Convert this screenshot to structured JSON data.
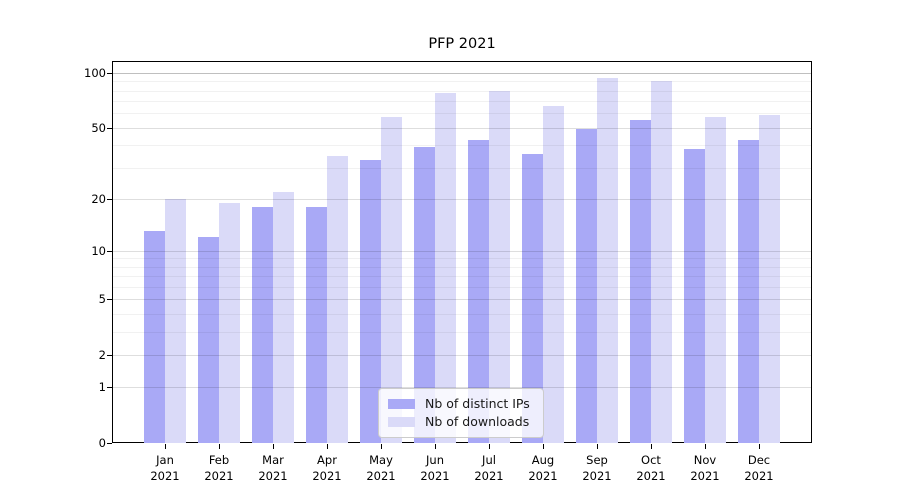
{
  "chart_data": {
    "type": "bar",
    "title": "PFP 2021",
    "x": {
      "categories": [
        "Jan",
        "Feb",
        "Mar",
        "Apr",
        "May",
        "Jun",
        "Jul",
        "Aug",
        "Sep",
        "Oct",
        "Nov",
        "Dec"
      ],
      "year_label": "2021"
    },
    "series": [
      {
        "name": "Nb of distinct IPs",
        "key": "distinct-ips",
        "color": "#a9a9f6",
        "values": [
          13,
          12,
          18,
          18,
          33,
          39,
          43,
          36,
          49,
          55,
          38,
          43
        ]
      },
      {
        "name": "Nb of downloads",
        "key": "downloads",
        "color": "#dadaf8",
        "values": [
          20,
          19,
          22,
          35,
          57,
          78,
          80,
          66,
          94,
          90,
          57,
          59
        ]
      }
    ],
    "yaxis": {
      "scale": "log1p",
      "ticks": [
        0,
        1,
        2,
        5,
        10,
        20,
        50,
        100
      ],
      "minor_ticks": [
        3,
        4,
        6,
        7,
        8,
        9,
        30,
        40,
        60,
        70,
        80,
        90
      ],
      "range": [
        0,
        116
      ]
    },
    "legend": {
      "position": "lower center"
    },
    "grid": true,
    "colors": {
      "major_gridline": "#dddddd",
      "top_gridline": "#bfbfbf",
      "minor_gridline": "#f0f0f0",
      "spine": "#000000"
    }
  }
}
